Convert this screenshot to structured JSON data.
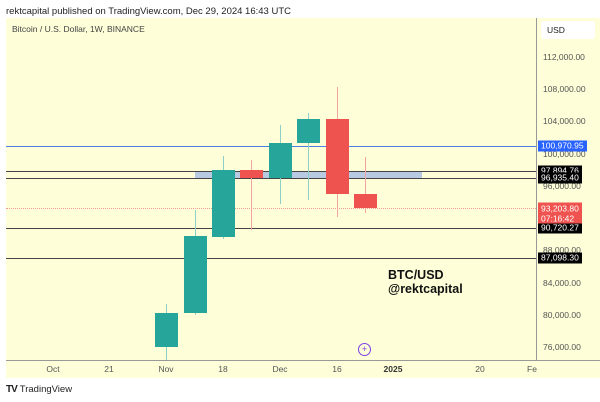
{
  "header": {
    "published": "rektcapital published on TradingView.com, Dec 29, 2024 16:43 UTC"
  },
  "chart": {
    "symbol_label": "Bitcoin / U.S. Dollar, 1W, BINANCE",
    "currency": "USD",
    "watermark_line1": "BTC/USD",
    "watermark_line2": "@rektcapital"
  },
  "footer": {
    "brand": "TradingView"
  },
  "colors": {
    "up": "#26a69a",
    "down": "#ef5350",
    "background": "#fefed8",
    "blue_line": "#4a7fe6",
    "zone": "#b8c9e2"
  },
  "chart_data": {
    "type": "candlestick",
    "title": "Bitcoin / U.S. Dollar, 1W, BINANCE",
    "xlabel": "",
    "ylabel": "USD",
    "ylim": [
      74000,
      116000
    ],
    "y_ticks": [
      "112,000.00",
      "108,000.00",
      "104,000.00",
      "100,000.00",
      "96,000.00",
      "88,000.00",
      "84,000.00",
      "80,000.00",
      "76,000.00"
    ],
    "x_ticks": [
      "Oct",
      "21",
      "Nov",
      "18",
      "Dec",
      "16",
      "2025",
      "20",
      "Fe"
    ],
    "candles": [
      {
        "open": 76000,
        "high": 81300,
        "low": 74000,
        "close": 80200
      },
      {
        "open": 80200,
        "high": 93000,
        "low": 80000,
        "close": 89800
      },
      {
        "open": 89600,
        "high": 99700,
        "low": 89400,
        "close": 98000
      },
      {
        "open": 98000,
        "high": 99200,
        "low": 90500,
        "close": 97000
      },
      {
        "open": 97000,
        "high": 103500,
        "low": 93700,
        "close": 101300
      },
      {
        "open": 101300,
        "high": 105000,
        "low": 94200,
        "close": 104300
      },
      {
        "open": 104300,
        "high": 108300,
        "low": 92100,
        "close": 95000
      },
      {
        "open": 95000,
        "high": 99600,
        "low": 92600,
        "close": 93200
      }
    ],
    "horizontal_levels": [
      {
        "label": "100,970.95",
        "value": 100970.95,
        "color": "#2962ff",
        "style": "solid-blue"
      },
      {
        "label": "97,894.76",
        "value": 97894.76,
        "color": "#000000",
        "style": "solid-black"
      },
      {
        "label": "96,935.40",
        "value": 96935.4,
        "color": "#000000",
        "style": "solid-black"
      },
      {
        "label": "90,720.27",
        "value": 90720.27,
        "color": "#000000",
        "style": "solid-black"
      },
      {
        "label": "87,098.30",
        "value": 87098.3,
        "color": "#000000",
        "style": "solid-black"
      }
    ],
    "current_price": {
      "label": "93,203.80",
      "countdown": "07:16:42",
      "color": "#ef5350"
    },
    "zone": {
      "top": 97894.76,
      "bottom": 96935.4,
      "color": "#b8c9e2"
    }
  }
}
